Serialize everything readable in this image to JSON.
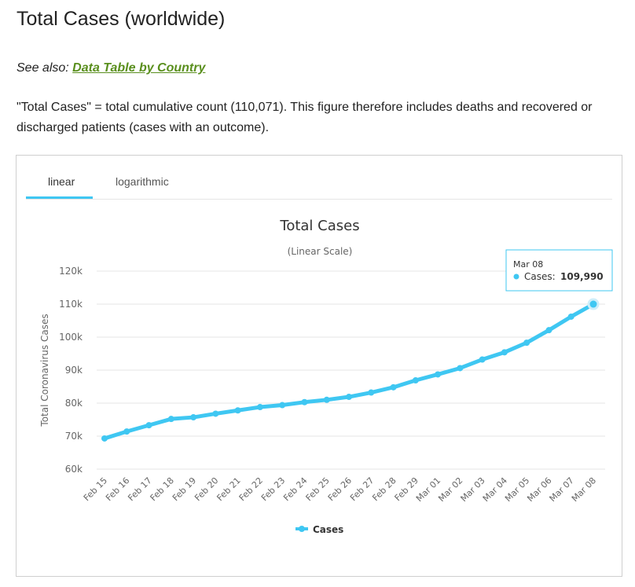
{
  "page": {
    "title": "Total Cases (worldwide)",
    "see_also_prefix": "See also:",
    "see_also_link": "Data Table by Country",
    "description": "\"Total Cases\" = total cumulative count (110,071). This figure therefore includes deaths and recovered or discharged patients (cases with an outcome)."
  },
  "tabs": [
    {
      "label": "linear",
      "active": true
    },
    {
      "label": "logarithmic",
      "active": false
    }
  ],
  "colors": {
    "series": "#3fc7f2",
    "link": "#5a8f1e",
    "grid": "#e6e6e6"
  },
  "tooltip": {
    "date": "Mar 08",
    "label": "Cases:",
    "value": "109,990"
  },
  "chart_data": {
    "type": "line",
    "title": "Total Cases",
    "subtitle": "(Linear Scale)",
    "ylabel": "Total Coronavirus Cases",
    "xlabel": "",
    "ylim": [
      60000,
      120000
    ],
    "yticks": [
      60000,
      70000,
      80000,
      90000,
      100000,
      110000,
      120000
    ],
    "ytick_labels": [
      "60k",
      "70k",
      "80k",
      "90k",
      "100k",
      "110k",
      "120k"
    ],
    "grid": true,
    "legend": "bottom-center",
    "categories": [
      "Feb 15",
      "Feb 16",
      "Feb 17",
      "Feb 18",
      "Feb 19",
      "Feb 20",
      "Feb 21",
      "Feb 22",
      "Feb 23",
      "Feb 24",
      "Feb 25",
      "Feb 26",
      "Feb 27",
      "Feb 28",
      "Feb 29",
      "Mar 01",
      "Mar 02",
      "Mar 03",
      "Mar 04",
      "Mar 05",
      "Mar 06",
      "Mar 07",
      "Mar 08"
    ],
    "series": [
      {
        "name": "Cases",
        "values": [
          69300,
          71400,
          73300,
          75200,
          75700,
          76800,
          77800,
          78800,
          79400,
          80300,
          81000,
          81900,
          83200,
          84800,
          86900,
          88700,
          90600,
          93200,
          95400,
          98300,
          102100,
          106200,
          109990
        ]
      }
    ]
  }
}
